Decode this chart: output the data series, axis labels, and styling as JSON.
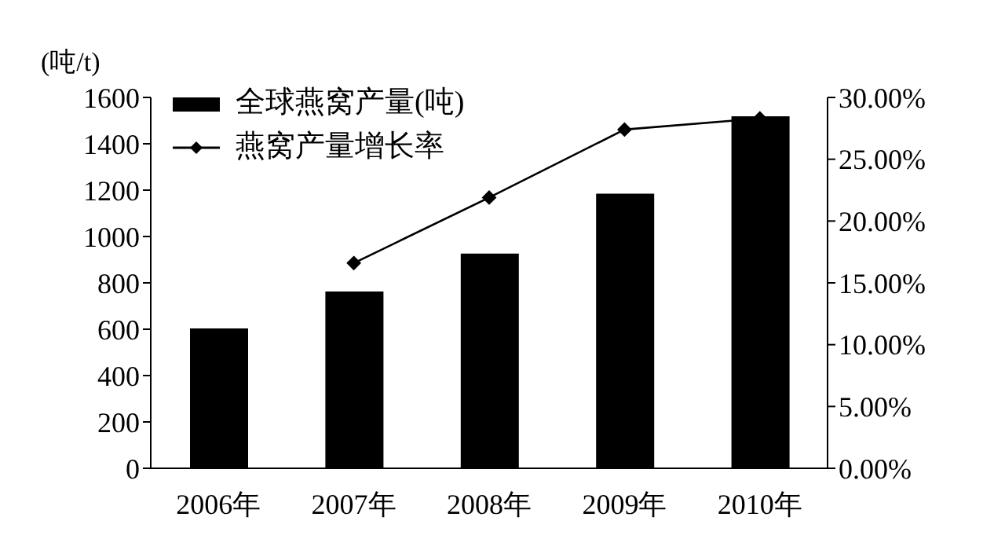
{
  "chart_data": {
    "type": "bar",
    "ylabel": "(吨/t)",
    "categories": [
      "2006年",
      "2007年",
      "2008年",
      "2009年",
      "2010年"
    ],
    "series": [
      {
        "name": "全球燕窝产量(吨)",
        "color": "#000000",
        "values": [
          603,
          763,
          926,
          1185,
          1519
        ]
      },
      {
        "name": "燕窝产量增长率",
        "type": "line",
        "axis": "y2",
        "color": "#000000",
        "marker": "diamond",
        "values": [
          null,
          16.6,
          21.9,
          27.4,
          28.3
        ]
      }
    ],
    "ylim": [
      0,
      1600
    ],
    "yticks": [
      0,
      200,
      400,
      600,
      800,
      1000,
      1200,
      1400,
      1600
    ],
    "y2lim": [
      0,
      30
    ],
    "y2ticks": [
      {
        "value": 0,
        "label": "0.00%"
      },
      {
        "value": 5,
        "label": "5.00%"
      },
      {
        "value": 10,
        "label": "10.00%"
      },
      {
        "value": 15,
        "label": "15.00%"
      },
      {
        "value": 20,
        "label": "20.00%"
      },
      {
        "value": 25,
        "label": "25.00%"
      },
      {
        "value": 30,
        "label": "30.00%"
      }
    ],
    "grid": false,
    "legend": "top left"
  }
}
